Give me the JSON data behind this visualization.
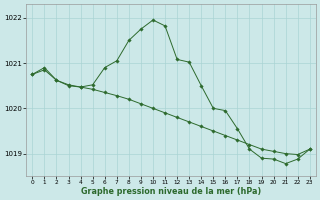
{
  "line1_x": [
    0,
    1,
    2,
    3,
    4,
    5,
    6,
    7,
    8,
    9,
    10,
    11,
    12,
    13,
    14,
    15,
    16,
    17,
    18,
    19,
    20,
    21,
    22,
    23
  ],
  "line1_y": [
    1020.75,
    1020.85,
    1020.62,
    1020.52,
    1020.47,
    1020.42,
    1020.35,
    1020.28,
    1020.2,
    1020.1,
    1020.0,
    1019.9,
    1019.8,
    1019.7,
    1019.6,
    1019.5,
    1019.4,
    1019.3,
    1019.2,
    1019.1,
    1019.05,
    1019.0,
    1018.98,
    1019.1
  ],
  "line2_x": [
    0,
    1,
    2,
    3,
    4,
    5,
    6,
    7,
    8,
    9,
    10,
    11,
    12,
    13,
    14,
    15,
    16,
    17,
    18,
    19,
    20,
    21,
    22,
    23
  ],
  "line2_y": [
    1020.75,
    1020.9,
    1020.62,
    1020.5,
    1020.47,
    1020.52,
    1020.9,
    1021.05,
    1021.5,
    1021.75,
    1021.95,
    1021.82,
    1021.08,
    1021.02,
    1020.5,
    1020.0,
    1019.95,
    1019.55,
    1019.1,
    1018.9,
    1018.88,
    1018.78,
    1018.88,
    1019.1
  ],
  "line_color": "#2d6a2d",
  "marker_size": 1.8,
  "bg_color": "#cce8e8",
  "grid_color": "#aad4d4",
  "xlabel": "Graphe pression niveau de la mer (hPa)",
  "ylim": [
    1018.5,
    1022.3
  ],
  "xlim": [
    -0.5,
    23.5
  ],
  "yticks": [
    1019,
    1020,
    1021,
    1022
  ],
  "xticks": [
    0,
    1,
    2,
    3,
    4,
    5,
    6,
    7,
    8,
    9,
    10,
    11,
    12,
    13,
    14,
    15,
    16,
    17,
    18,
    19,
    20,
    21,
    22,
    23
  ]
}
